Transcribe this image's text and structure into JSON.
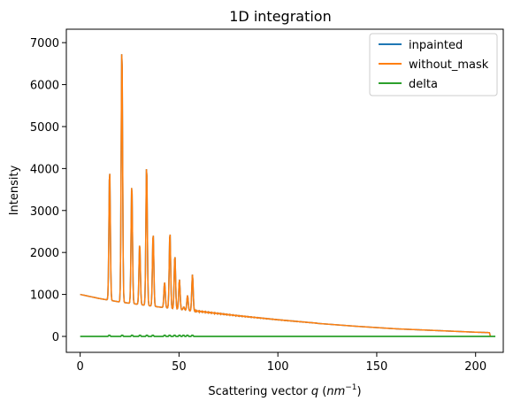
{
  "chart_data": {
    "type": "line",
    "title": "1D integration",
    "xlabel": "Scattering vector q (nm⁻¹)",
    "xlabel_parts": {
      "prefix": "Scattering vector ",
      "var": "q",
      "unit_open": " (",
      "unit_var": "nm",
      "unit_sup": "−1",
      "unit_close": ")"
    },
    "ylabel": "Intensity",
    "xlim": [
      -7,
      214
    ],
    "ylim": [
      -380,
      7320
    ],
    "xticks": [
      0,
      50,
      100,
      150,
      200
    ],
    "yticks": [
      0,
      1000,
      2000,
      3000,
      4000,
      5000,
      6000,
      7000
    ],
    "grid": false,
    "legend_position": "top-right",
    "baseline": {
      "x_start": 0,
      "y_start": 1000,
      "points": [
        [
          0,
          1000
        ],
        [
          10,
          900
        ],
        [
          20,
          820
        ],
        [
          30,
          760
        ],
        [
          40,
          700
        ],
        [
          50,
          640
        ],
        [
          60,
          580
        ],
        [
          80,
          480
        ],
        [
          100,
          390
        ],
        [
          120,
          310
        ],
        [
          140,
          240
        ],
        [
          160,
          180
        ],
        [
          180,
          140
        ],
        [
          200,
          100
        ],
        [
          207,
          90
        ]
      ]
    },
    "peaks": [
      {
        "x": 14.9,
        "y": 4000
      },
      {
        "x": 21.1,
        "y": 6970
      },
      {
        "x": 26.1,
        "y": 3650
      },
      {
        "x": 30.1,
        "y": 2220
      },
      {
        "x": 33.6,
        "y": 4120
      },
      {
        "x": 36.9,
        "y": 2470
      },
      {
        "x": 42.7,
        "y": 1290
      },
      {
        "x": 45.4,
        "y": 2500
      },
      {
        "x": 47.9,
        "y": 1940
      },
      {
        "x": 50.2,
        "y": 1360
      },
      {
        "x": 52.4,
        "y": 700
      },
      {
        "x": 54.3,
        "y": 980
      },
      {
        "x": 56.8,
        "y": 1480
      }
    ],
    "series": [
      {
        "name": "inpainted",
        "color": "#1f77b4"
      },
      {
        "name": "without_mask",
        "color": "#ff7f0e"
      },
      {
        "name": "delta",
        "color": "#2ca02c",
        "x_range": [
          0,
          210
        ],
        "value": 0
      }
    ]
  }
}
